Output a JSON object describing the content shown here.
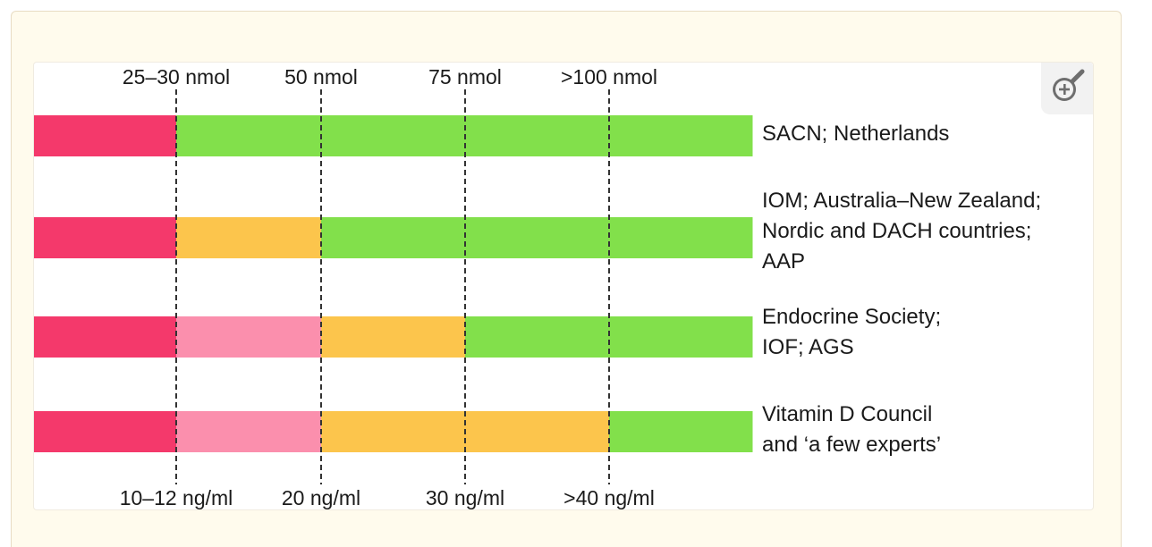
{
  "top_labels": [
    "25–30 nmol",
    "50 nmol",
    "75 nmol",
    ">100 nmol"
  ],
  "bottom_labels": [
    "10–12 ng/ml",
    "20 ng/ml",
    "30 ng/ml",
    ">40 ng/ml"
  ],
  "rows": [
    {
      "label_lines": [
        "SACN; Netherlands"
      ],
      "segment_colors": [
        "#f4396b",
        "#82e04b",
        "#82e04b",
        "#82e04b",
        "#82e04b"
      ]
    },
    {
      "label_lines": [
        "IOM; Australia–New Zealand;",
        "Nordic and DACH countries;",
        "AAP"
      ],
      "segment_colors": [
        "#f4396b",
        "#fcc54c",
        "#82e04b",
        "#82e04b",
        "#82e04b"
      ]
    },
    {
      "label_lines": [
        "Endocrine Society;",
        "IOF; AGS"
      ],
      "segment_colors": [
        "#f4396b",
        "#fb8fad",
        "#fcc54c",
        "#82e04b",
        "#82e04b"
      ]
    },
    {
      "label_lines": [
        "Vitamin D Council",
        "and ‘a few experts’"
      ],
      "segment_colors": [
        "#f4396b",
        "#fb8fad",
        "#fcc54c",
        "#fcc54c",
        "#82e04b"
      ]
    }
  ],
  "zoom_icon": "zoom-in-icon",
  "colors": {
    "deficient": "#f4396b",
    "insufficient_light": "#fb8fad",
    "insufficient": "#fcc54c",
    "sufficient": "#82e04b",
    "frame_bg": "#fffbed"
  }
}
